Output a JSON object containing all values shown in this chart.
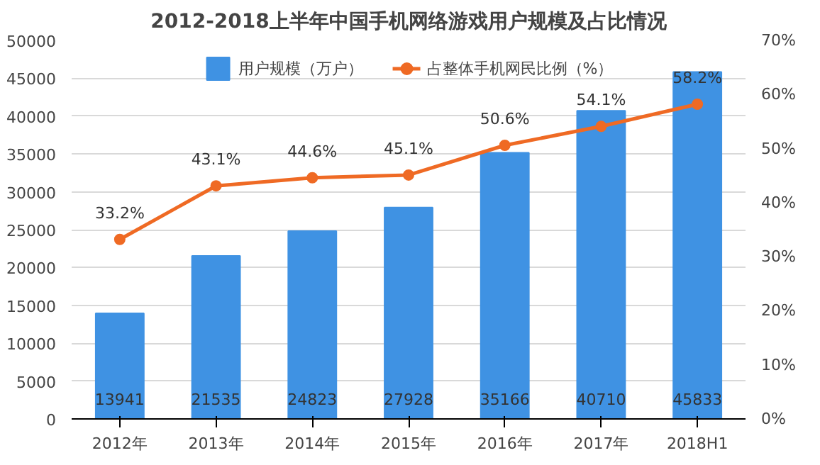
{
  "chart_data": {
    "type": "bar",
    "title": "2012-2018上半年中国手机网络游戏用户规模及占比情况",
    "categories": [
      "2012年",
      "2013年",
      "2014年",
      "2015年",
      "2016年",
      "2017年",
      "2018H1"
    ],
    "series": [
      {
        "name": "用户规模（万户）",
        "color": "#3f92e3",
        "values": [
          13941,
          21535,
          24823,
          27928,
          35166,
          40710,
          45833
        ],
        "value_labels": [
          "13941",
          "21535",
          "24823",
          "27928",
          "35166",
          "40710",
          "45833"
        ]
      },
      {
        "name": "占整体手机网民比例（%）",
        "type": "line",
        "axis": "y2",
        "color": "#ef6a24",
        "marker": "circle",
        "values": [
          33.2,
          43.1,
          44.6,
          45.1,
          50.6,
          54.1,
          58.2
        ],
        "value_labels": [
          "33.2%",
          "43.1%",
          "44.6%",
          "45.1%",
          "50.6%",
          "54.1%",
          "58.2%"
        ]
      }
    ],
    "ylim": [
      0,
      50000
    ],
    "yticks": [
      0,
      5000,
      10000,
      15000,
      20000,
      25000,
      30000,
      35000,
      40000,
      45000,
      50000
    ],
    "y2lim": [
      0,
      70
    ],
    "y2ticks": [
      {
        "value": 0,
        "label": "0%"
      },
      {
        "value": 10,
        "label": "10%"
      },
      {
        "value": 20,
        "label": "20%"
      },
      {
        "value": 30,
        "label": "30%"
      },
      {
        "value": 40,
        "label": "40%"
      },
      {
        "value": 50,
        "label": "50%"
      },
      {
        "value": 60,
        "label": "60%"
      },
      {
        "value": 70,
        "label": "70%"
      }
    ],
    "grid": "y",
    "legend": "top"
  }
}
